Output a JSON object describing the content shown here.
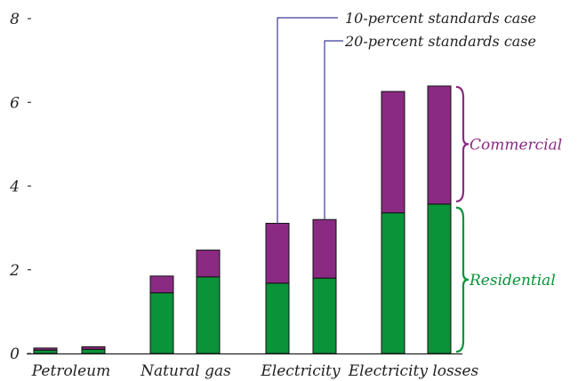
{
  "chart_data": {
    "type": "bar",
    "stacked": true,
    "title": "",
    "xlabel": "",
    "ylabel": "",
    "ylim": [
      0,
      8
    ],
    "yticks": [
      0,
      2,
      4,
      6,
      8
    ],
    "grid": false,
    "categories": [
      "Petroleum",
      "Natural gas",
      "Electricity",
      "Electricity losses"
    ],
    "cases": [
      "10-percent standards case",
      "20-percent standards case"
    ],
    "series": [
      {
        "name": "Residential",
        "color": "#0a9338",
        "values": [
          [
            0.08,
            0.1
          ],
          [
            1.45,
            1.83
          ],
          [
            1.68,
            1.8
          ],
          [
            3.36,
            3.57
          ]
        ]
      },
      {
        "name": "Commercial",
        "color": "#8b2a82",
        "values": [
          [
            0.05,
            0.06
          ],
          [
            0.4,
            0.64
          ],
          [
            1.43,
            1.4
          ],
          [
            2.9,
            2.82
          ]
        ]
      }
    ]
  }
}
